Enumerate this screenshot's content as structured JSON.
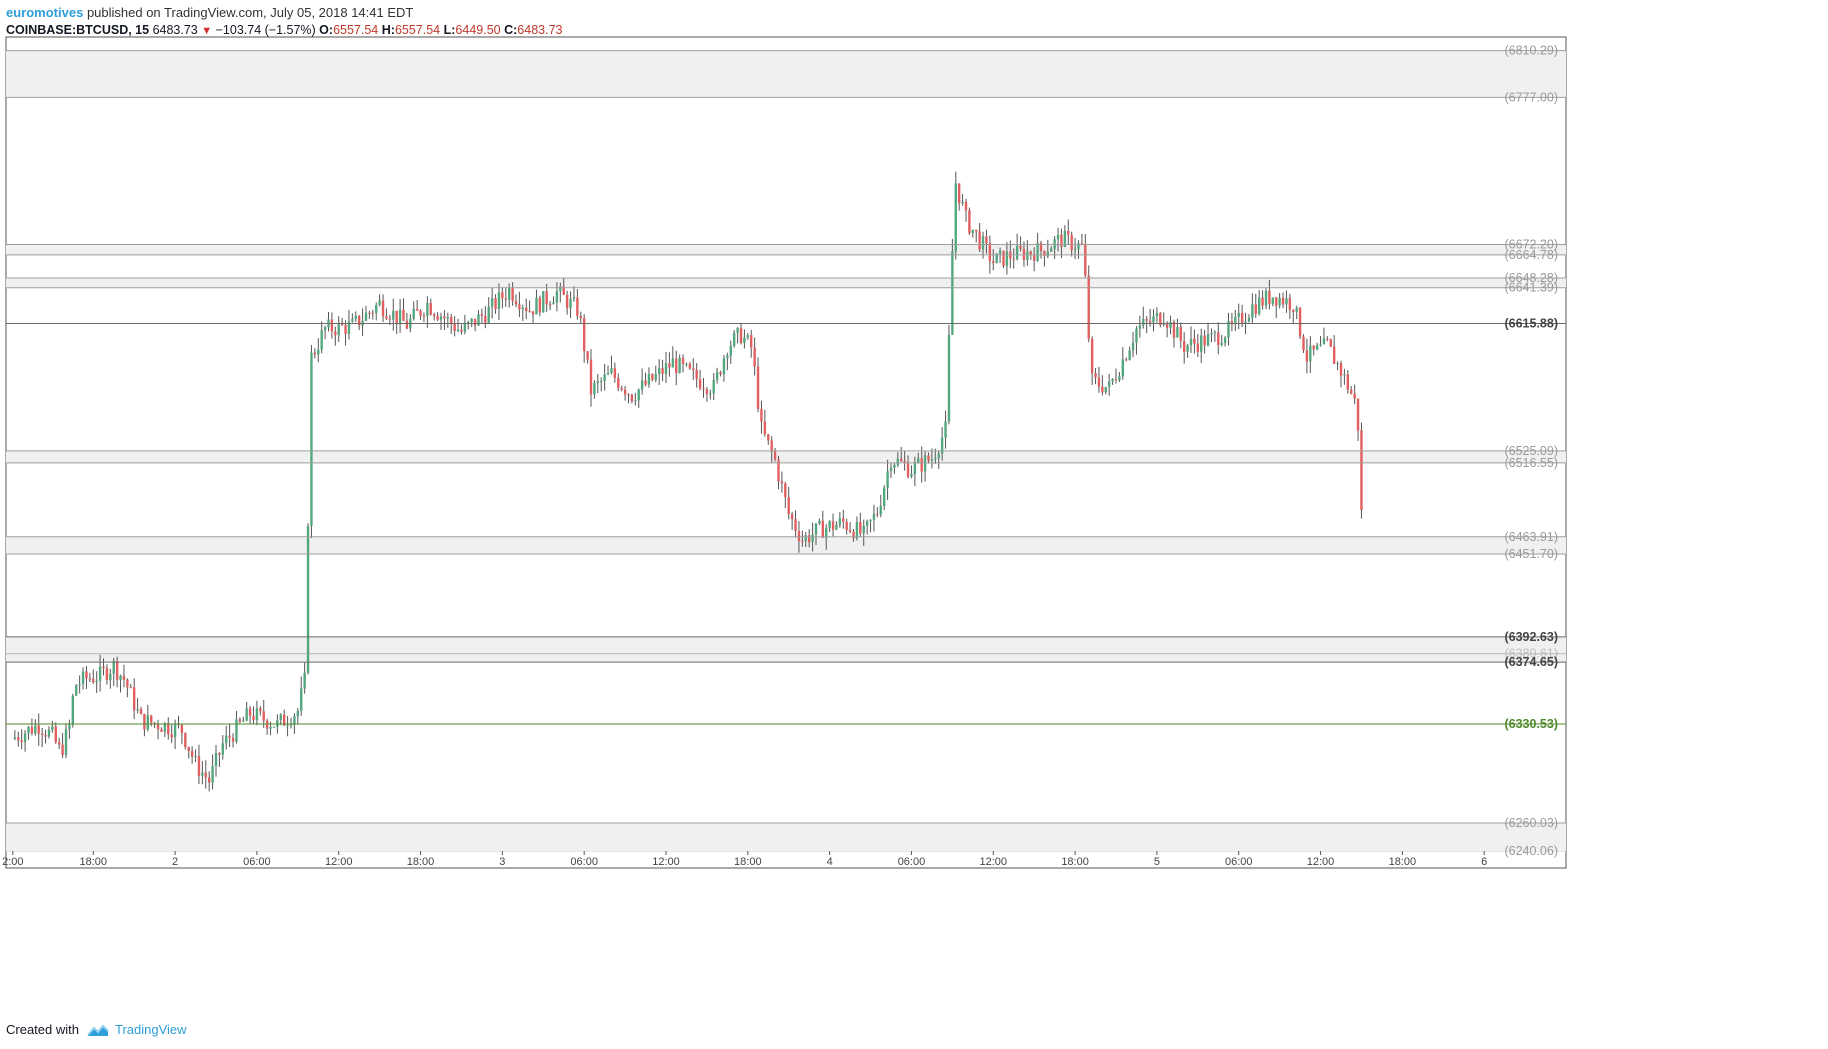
{
  "header": {
    "author": "euromotives",
    "published": "published on TradingView.com, July 05, 2018 14:41 EDT",
    "symbol": "COINBASE:BTCUSD, 15",
    "last": "6483.73",
    "change": "−103.74 (−1.57%)",
    "o_label": "O:",
    "o_value": "6557.54",
    "h_label": "H:",
    "h_value": "6557.54",
    "l_label": "L:",
    "l_value": "6449.50",
    "c_label": "C:",
    "c_value": "6483.73"
  },
  "footer": {
    "created_with": "Created with",
    "brand": "TradingView"
  },
  "colors": {
    "up": "#53a77e",
    "down": "#e35e5e",
    "level_line": "#9e9e9e",
    "support_line": "#4f8a2a",
    "zone_fill": "#f0f0f0",
    "accent": "#2e9fd8"
  },
  "chart_data": {
    "type": "candlestick",
    "symbol": "COINBASE:BTCUSD",
    "interval": "15",
    "y_range": [
      6240.06,
      6820
    ],
    "price_labels": [
      "6810.29",
      "6777.00",
      "6672.20",
      "6664.78",
      "6648.28",
      "6641.39",
      "6615.88",
      "6525.09",
      "6516.55",
      "6463.91",
      "6451.70",
      "6392.63",
      "6380.61",
      "6374.65",
      "6330.53",
      "6260.03",
      "6240.06"
    ],
    "levels": [
      {
        "value": 6810.29,
        "label": "(6810.29)",
        "style": "zone-edge"
      },
      {
        "value": 6777.0,
        "label": "(6777.00)",
        "style": "zone-edge"
      },
      {
        "value": 6672.2,
        "label": "(6672.20)",
        "style": "zone-edge"
      },
      {
        "value": 6664.78,
        "label": "(6664.78)",
        "style": "zone-edge"
      },
      {
        "value": 6648.28,
        "label": "(6648.28)",
        "style": "zone-edge"
      },
      {
        "value": 6641.39,
        "label": "(6641.39)",
        "style": "zone-edge"
      },
      {
        "value": 6615.88,
        "label": "(6615.88)",
        "style": "bold"
      },
      {
        "value": 6525.09,
        "label": "(6525.09)",
        "style": "zone-edge"
      },
      {
        "value": 6516.55,
        "label": "(6516.55)",
        "style": "zone-edge"
      },
      {
        "value": 6463.91,
        "label": "(6463.91)",
        "style": "zone-edge"
      },
      {
        "value": 6451.7,
        "label": "(6451.70)",
        "style": "zone-edge"
      },
      {
        "value": 6392.63,
        "label": "(6392.63)",
        "style": "bold"
      },
      {
        "value": 6380.61,
        "label": "(6380.61)",
        "style": "faint"
      },
      {
        "value": 6374.65,
        "label": "(6374.65)",
        "style": "bold"
      },
      {
        "value": 6330.53,
        "label": "(6330.53)",
        "style": "support"
      },
      {
        "value": 6260.03,
        "label": "(6260.03)",
        "style": "zone-edge"
      },
      {
        "value": 6240.06,
        "label": "(6240.06)",
        "style": "plain"
      }
    ],
    "zones": [
      [
        6777.0,
        6810.29
      ],
      [
        6664.78,
        6672.2
      ],
      [
        6641.39,
        6648.28
      ],
      [
        6516.55,
        6525.09
      ],
      [
        6451.7,
        6463.91
      ],
      [
        6374.65,
        6392.63
      ],
      [
        6240.06,
        6260.03
      ]
    ],
    "x_ticks": [
      {
        "label": "2:00",
        "t": 0.1
      },
      {
        "label": "18:00",
        "t": 6
      },
      {
        "label": "2",
        "t": 12
      },
      {
        "label": "06:00",
        "t": 18
      },
      {
        "label": "12:00",
        "t": 24
      },
      {
        "label": "18:00",
        "t": 30
      },
      {
        "label": "3",
        "t": 36
      },
      {
        "label": "06:00",
        "t": 42
      },
      {
        "label": "12:00",
        "t": 48
      },
      {
        "label": "18:00",
        "t": 54
      },
      {
        "label": "4",
        "t": 60
      },
      {
        "label": "06:00",
        "t": 66
      },
      {
        "label": "12:00",
        "t": 72
      },
      {
        "label": "18:00",
        "t": 78
      },
      {
        "label": "5",
        "t": 84
      },
      {
        "label": "06:00",
        "t": 90
      },
      {
        "label": "12:00",
        "t": 96
      },
      {
        "label": "18:00",
        "t": 102
      },
      {
        "label": "6",
        "t": 108
      }
    ],
    "x_range": [
      -0.4,
      114
    ],
    "anchors": [
      [
        0,
        6320
      ],
      [
        2,
        6330
      ],
      [
        3,
        6322
      ],
      [
        3.6,
        6310
      ],
      [
        4.3,
        6330
      ],
      [
        4.6,
        6358
      ],
      [
        5.5,
        6363
      ],
      [
        6.5,
        6365
      ],
      [
        7.5,
        6372
      ],
      [
        8.3,
        6362
      ],
      [
        9.5,
        6333
      ],
      [
        11,
        6330
      ],
      [
        12.5,
        6326
      ],
      [
        13.5,
        6302
      ],
      [
        14.5,
        6290
      ],
      [
        15.5,
        6316
      ],
      [
        17.5,
        6338
      ],
      [
        19.5,
        6330
      ],
      [
        21,
        6340
      ],
      [
        21.6,
        6365
      ],
      [
        21.9,
        6590
      ],
      [
        23,
        6612
      ],
      [
        25,
        6614
      ],
      [
        27,
        6630
      ],
      [
        29,
        6615
      ],
      [
        30.5,
        6630
      ],
      [
        33,
        6610
      ],
      [
        35,
        6625
      ],
      [
        36.5,
        6640
      ],
      [
        38,
        6626
      ],
      [
        40,
        6638
      ],
      [
        41.6,
        6625
      ],
      [
        42.5,
        6568
      ],
      [
        44,
        6580
      ],
      [
        45.5,
        6565
      ],
      [
        47,
        6576
      ],
      [
        48.5,
        6588
      ],
      [
        50,
        6578
      ],
      [
        51.5,
        6570
      ],
      [
        52.5,
        6600
      ],
      [
        53.5,
        6608
      ],
      [
        54.3,
        6598
      ],
      [
        55,
        6540
      ],
      [
        56,
        6518
      ],
      [
        57,
        6480
      ],
      [
        58,
        6462
      ],
      [
        59.5,
        6470
      ],
      [
        61,
        6474
      ],
      [
        62.5,
        6465
      ],
      [
        63.5,
        6482
      ],
      [
        64.5,
        6520
      ],
      [
        66,
        6512
      ],
      [
        67.5,
        6520
      ],
      [
        68.5,
        6540
      ],
      [
        69.2,
        6718
      ],
      [
        70,
        6690
      ],
      [
        71,
        6675
      ],
      [
        72,
        6660
      ],
      [
        73.5,
        6665
      ],
      [
        75.5,
        6668
      ],
      [
        77,
        6676
      ],
      [
        78.6,
        6670
      ],
      [
        79.2,
        6575
      ],
      [
        80.5,
        6570
      ],
      [
        81.5,
        6590
      ],
      [
        82.5,
        6612
      ],
      [
        84.5,
        6622
      ],
      [
        86,
        6600
      ],
      [
        88,
        6605
      ],
      [
        89.5,
        6612
      ],
      [
        91,
        6628
      ],
      [
        92.5,
        6636
      ],
      [
        94,
        6630
      ],
      [
        95,
        6592
      ],
      [
        96.5,
        6600
      ],
      [
        97.5,
        6582
      ],
      [
        98.3,
        6565
      ],
      [
        98.7,
        6555
      ],
      [
        99,
        6483
      ]
    ]
  }
}
